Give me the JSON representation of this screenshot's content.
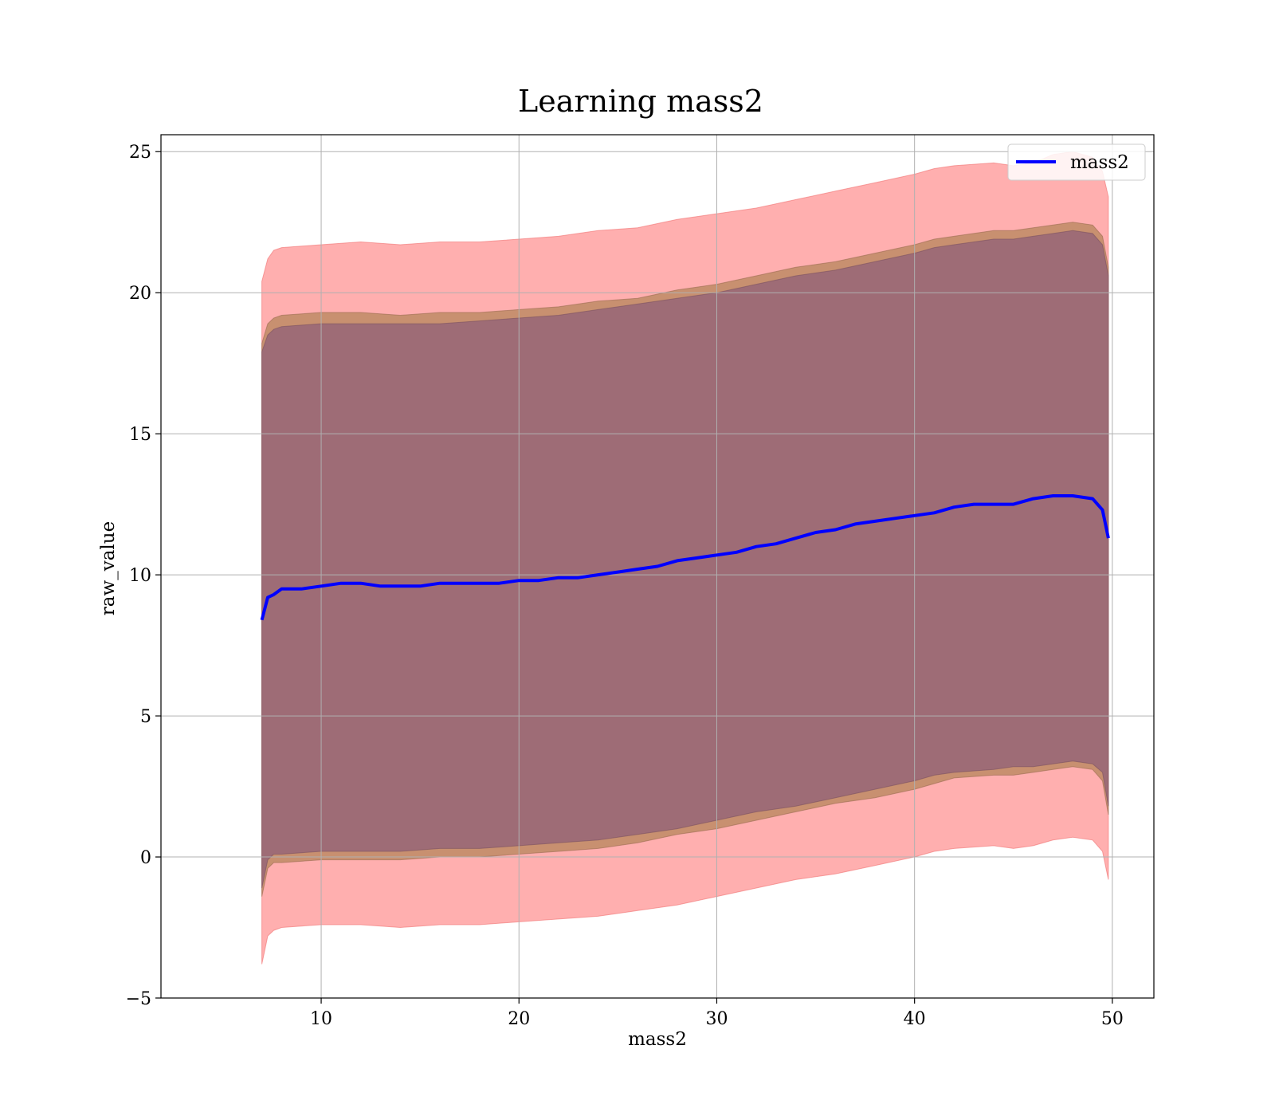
{
  "chart_data": {
    "type": "area",
    "title": "Learning mass2",
    "xlabel": "mass2",
    "ylabel": "raw_value",
    "xlim": [
      1.9,
      52.1
    ],
    "ylim": [
      -5.0,
      25.6
    ],
    "xticks": [
      10,
      20,
      30,
      40,
      50
    ],
    "yticks": [
      -5,
      0,
      5,
      10,
      15,
      20,
      25
    ],
    "ytick_labels": [
      "−5",
      "0",
      "5",
      "10",
      "15",
      "20",
      "25"
    ],
    "grid": true,
    "legend": {
      "entries": [
        "mass2"
      ],
      "placement": "top-right"
    },
    "colors": {
      "line": "#0000ff",
      "outer_band": "#ff9999",
      "middle_band": "#c89070",
      "inner_band": "#9e6c76",
      "grid": "#b0b0b0"
    },
    "series": [
      {
        "name": "mass2",
        "x": [
          7.0,
          7.3,
          7.6,
          8.0,
          9,
          10,
          11,
          12,
          13,
          14,
          15,
          16,
          17,
          18,
          19,
          20,
          21,
          22,
          23,
          24,
          25,
          26,
          27,
          28,
          29,
          30,
          31,
          32,
          33,
          34,
          35,
          36,
          37,
          38,
          39,
          40,
          41,
          42,
          43,
          44,
          45,
          46,
          47,
          48,
          49,
          49.5,
          49.8
        ],
        "y": [
          8.4,
          9.2,
          9.3,
          9.5,
          9.5,
          9.6,
          9.7,
          9.7,
          9.6,
          9.6,
          9.6,
          9.7,
          9.7,
          9.7,
          9.7,
          9.8,
          9.8,
          9.9,
          9.9,
          10.0,
          10.1,
          10.2,
          10.3,
          10.5,
          10.6,
          10.7,
          10.8,
          11.0,
          11.1,
          11.3,
          11.5,
          11.6,
          11.8,
          11.9,
          12.0,
          12.1,
          12.2,
          12.4,
          12.5,
          12.5,
          12.5,
          12.7,
          12.8,
          12.8,
          12.7,
          12.3,
          11.3
        ]
      }
    ],
    "bands": [
      {
        "role": "outer",
        "x": [
          7.0,
          7.3,
          7.6,
          8,
          10,
          12,
          14,
          16,
          18,
          20,
          22,
          24,
          26,
          28,
          30,
          32,
          34,
          36,
          38,
          40,
          41,
          42,
          44,
          45,
          46,
          47,
          48,
          49,
          49.5,
          49.8
        ],
        "upper": [
          20.4,
          21.2,
          21.5,
          21.6,
          21.7,
          21.8,
          21.7,
          21.8,
          21.8,
          21.9,
          22.0,
          22.2,
          22.3,
          22.6,
          22.8,
          23.0,
          23.3,
          23.6,
          23.9,
          24.2,
          24.4,
          24.5,
          24.6,
          24.5,
          24.6,
          24.9,
          25.0,
          24.8,
          24.3,
          23.4
        ],
        "lower": [
          -3.8,
          -2.8,
          -2.6,
          -2.5,
          -2.4,
          -2.4,
          -2.5,
          -2.4,
          -2.4,
          -2.3,
          -2.2,
          -2.1,
          -1.9,
          -1.7,
          -1.4,
          -1.1,
          -0.8,
          -0.6,
          -0.3,
          0.0,
          0.2,
          0.3,
          0.4,
          0.3,
          0.4,
          0.6,
          0.7,
          0.6,
          0.2,
          -0.8
        ]
      },
      {
        "role": "middle",
        "x": [
          7.0,
          7.3,
          7.6,
          8,
          10,
          12,
          14,
          16,
          18,
          20,
          22,
          24,
          26,
          28,
          30,
          32,
          34,
          36,
          38,
          40,
          41,
          42,
          44,
          45,
          46,
          47,
          48,
          49,
          49.5,
          49.8
        ],
        "upper": [
          18.2,
          18.9,
          19.1,
          19.2,
          19.3,
          19.3,
          19.2,
          19.3,
          19.3,
          19.4,
          19.5,
          19.7,
          19.8,
          20.1,
          20.3,
          20.6,
          20.9,
          21.1,
          21.4,
          21.7,
          21.9,
          22.0,
          22.2,
          22.2,
          22.3,
          22.4,
          22.5,
          22.4,
          22.0,
          20.9
        ],
        "lower": [
          -1.4,
          -0.4,
          -0.2,
          -0.2,
          -0.1,
          -0.1,
          -0.1,
          0.0,
          0.0,
          0.1,
          0.2,
          0.3,
          0.5,
          0.8,
          1.0,
          1.3,
          1.6,
          1.9,
          2.1,
          2.4,
          2.6,
          2.8,
          2.9,
          2.9,
          3.0,
          3.1,
          3.2,
          3.1,
          2.7,
          1.5
        ]
      },
      {
        "role": "inner",
        "x": [
          7.0,
          7.3,
          7.6,
          8,
          10,
          12,
          14,
          16,
          18,
          20,
          22,
          24,
          26,
          28,
          30,
          32,
          34,
          36,
          38,
          40,
          41,
          42,
          44,
          45,
          46,
          47,
          48,
          49,
          49.5,
          49.8
        ],
        "upper": [
          17.9,
          18.5,
          18.7,
          18.8,
          18.9,
          18.9,
          18.9,
          18.9,
          19.0,
          19.1,
          19.2,
          19.4,
          19.6,
          19.8,
          20.0,
          20.3,
          20.6,
          20.8,
          21.1,
          21.4,
          21.6,
          21.7,
          21.9,
          21.9,
          22.0,
          22.1,
          22.2,
          22.1,
          21.7,
          20.6
        ],
        "lower": [
          -1.1,
          -0.1,
          0.1,
          0.1,
          0.2,
          0.2,
          0.2,
          0.3,
          0.3,
          0.4,
          0.5,
          0.6,
          0.8,
          1.0,
          1.3,
          1.6,
          1.8,
          2.1,
          2.4,
          2.7,
          2.9,
          3.0,
          3.1,
          3.2,
          3.2,
          3.3,
          3.4,
          3.3,
          3.0,
          1.8
        ]
      }
    ]
  }
}
